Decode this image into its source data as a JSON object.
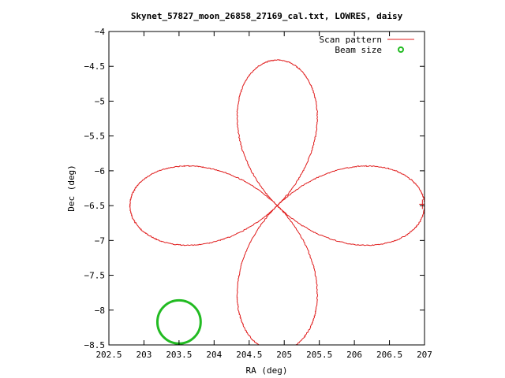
{
  "chart_data": {
    "type": "line",
    "title": "Skynet_57827_moon_26858_27169_cal.txt, LOWRES, daisy",
    "xlabel": "RA (deg)",
    "ylabel": "Dec (deg)",
    "xlim": [
      202.5,
      207
    ],
    "ylim": [
      -8.5,
      -4
    ],
    "x_ticks": [
      "202.5",
      "203",
      "203.5",
      "204",
      "204.5",
      "205",
      "205.5",
      "206",
      "206.5",
      "207"
    ],
    "y_ticks": [
      "-4",
      "-4.5",
      "-5",
      "-5.5",
      "-6",
      "-6.5",
      "-7",
      "-7.5",
      "-8",
      "-8.5"
    ],
    "grid": false,
    "legend_position": "top-right",
    "series": [
      {
        "name": "Scan pattern",
        "color": "#e01c1c",
        "style": "line",
        "pattern": "daisy",
        "center": [
          204.9,
          -6.5
        ],
        "petals": 4,
        "petal_radius_ra": 2.1,
        "petal_radius_dec": 2.09,
        "end_marker": [
          206.97,
          -6.48
        ]
      },
      {
        "name": "Beam size",
        "color": "#22bb22",
        "style": "circle",
        "center": [
          203.5,
          -8.17
        ],
        "radius_dec": 0.31
      }
    ]
  }
}
